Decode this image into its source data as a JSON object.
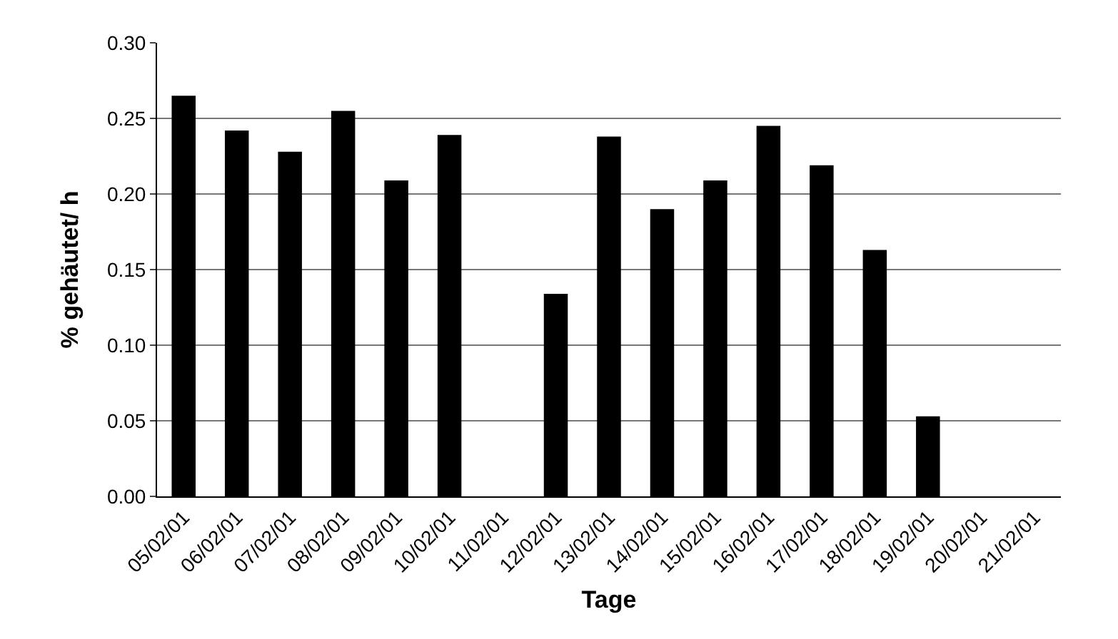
{
  "chart_data": {
    "type": "bar",
    "xlabel": "Tage",
    "ylabel": "% gehäutet/ h",
    "categories": [
      "05/02/01",
      "06/02/01",
      "07/02/01",
      "08/02/01",
      "09/02/01",
      "10/02/01",
      "11/02/01",
      "12/02/01",
      "13/02/01",
      "14/02/01",
      "15/02/01",
      "16/02/01",
      "17/02/01",
      "18/02/01",
      "19/02/01",
      "20/02/01",
      "21/02/01"
    ],
    "values": [
      0.265,
      0.242,
      0.228,
      0.255,
      0.209,
      0.239,
      0,
      0.134,
      0.238,
      0.19,
      0.209,
      0.245,
      0.219,
      0.163,
      0.053,
      0,
      0
    ],
    "color": "#000000",
    "ylim": [
      0,
      0.3
    ],
    "yticks": [
      {
        "value": 0,
        "label": "0.00"
      },
      {
        "value": 0.05,
        "label": "0.05"
      },
      {
        "value": 0.1,
        "label": "0.10"
      },
      {
        "value": 0.15,
        "label": "0.15"
      },
      {
        "value": 0.2,
        "label": "0.20"
      },
      {
        "value": 0.25,
        "label": "0.25"
      },
      {
        "value": 0.3,
        "label": "0.30"
      }
    ],
    "grid": "y"
  }
}
